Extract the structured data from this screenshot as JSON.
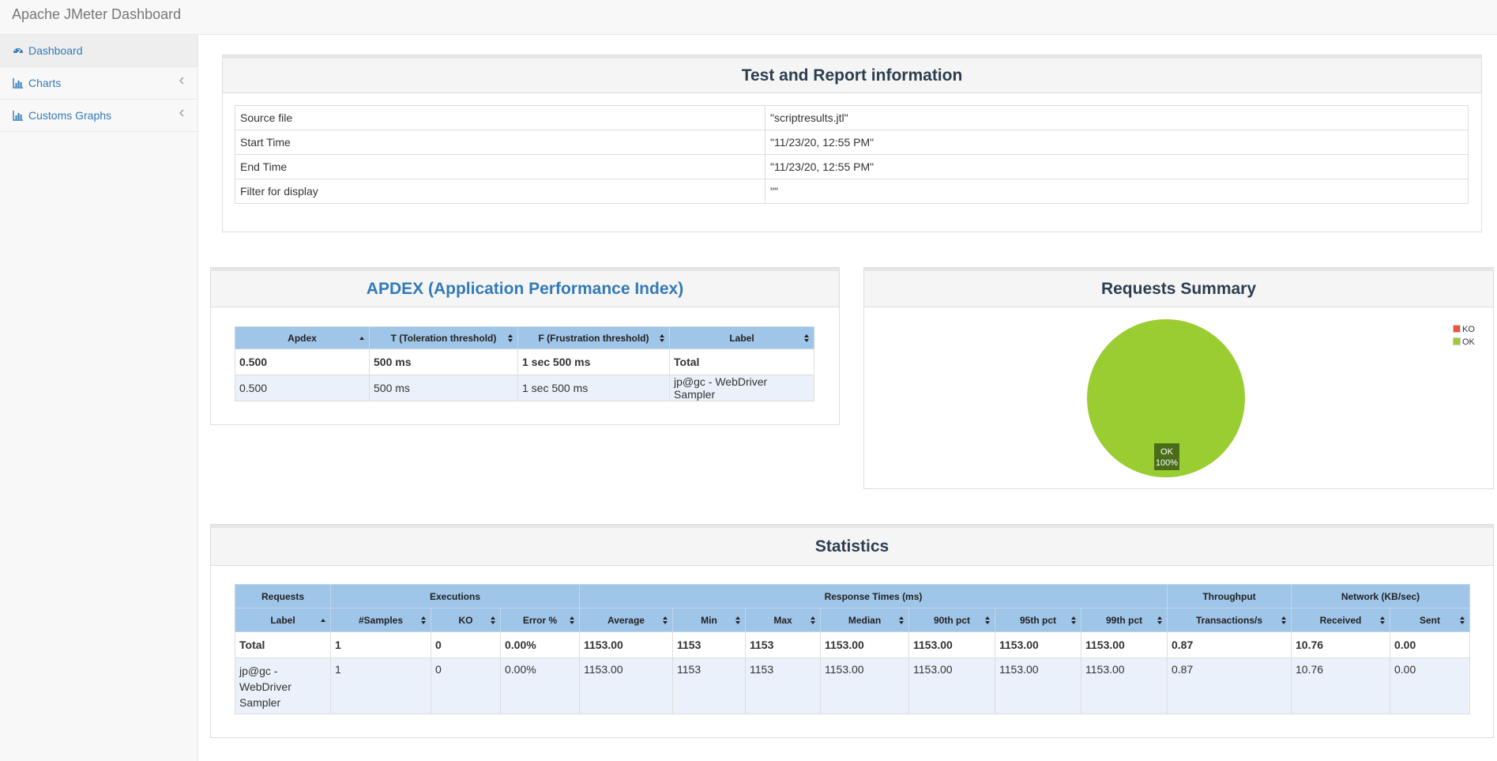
{
  "app": {
    "title": "Apache JMeter Dashboard"
  },
  "sidebar": {
    "items": [
      {
        "label": "Dashboard",
        "icon": "dashboard-icon"
      },
      {
        "label": "Charts",
        "icon": "bar-chart-icon"
      },
      {
        "label": "Customs Graphs",
        "icon": "bar-chart-icon"
      }
    ]
  },
  "info": {
    "title": "Test and Report information",
    "rows": [
      {
        "key": "Source file",
        "value": "\"scriptresults.jtl\""
      },
      {
        "key": "Start Time",
        "value": "\"11/23/20, 12:55 PM\""
      },
      {
        "key": "End Time",
        "value": "\"11/23/20, 12:55 PM\""
      },
      {
        "key": "Filter for display",
        "value": "\"\""
      }
    ]
  },
  "apdex": {
    "title": "APDEX (Application Performance Index)",
    "headers": [
      "Apdex",
      "T (Toleration threshold)",
      "F (Frustration threshold)",
      "Label"
    ],
    "rows": [
      [
        "0.500",
        "500 ms",
        "1 sec 500 ms",
        "Total"
      ],
      [
        "0.500",
        "500 ms",
        "1 sec 500 ms",
        "jp@gc - WebDriver Sampler"
      ]
    ]
  },
  "summary": {
    "title": "Requests Summary",
    "legend": [
      {
        "name": "KO",
        "color": "#ed5536"
      },
      {
        "name": "OK",
        "color": "#9acd32"
      }
    ],
    "slice_label": "OK",
    "slice_pct": "100%"
  },
  "chart_data": {
    "type": "pie",
    "title": "Requests Summary",
    "categories": [
      "KO",
      "OK"
    ],
    "values": [
      0,
      100
    ],
    "colors": [
      "#ed5536",
      "#9acd32"
    ],
    "legend": "top-right"
  },
  "stats": {
    "title": "Statistics",
    "groups": [
      "Requests",
      "Executions",
      "Response Times (ms)",
      "Throughput",
      "Network (KB/sec)"
    ],
    "headers": [
      "Label",
      "#Samples",
      "KO",
      "Error %",
      "Average",
      "Min",
      "Max",
      "Median",
      "90th pct",
      "95th pct",
      "99th pct",
      "Transactions/s",
      "Received",
      "Sent"
    ],
    "rows": [
      [
        "Total",
        "1",
        "0",
        "0.00%",
        "1153.00",
        "1153",
        "1153",
        "1153.00",
        "1153.00",
        "1153.00",
        "1153.00",
        "0.87",
        "10.76",
        "0.00"
      ],
      [
        "jp@gc - WebDriver Sampler",
        "1",
        "0",
        "0.00%",
        "1153.00",
        "1153",
        "1153",
        "1153.00",
        "1153.00",
        "1153.00",
        "1153.00",
        "0.87",
        "10.76",
        "0.00"
      ]
    ]
  },
  "colors": {
    "link": "#337ab7",
    "header_bg": "#9fc5e8",
    "row_alt": "#eaf1fa",
    "ok": "#9acd32",
    "ko": "#ed5536"
  }
}
